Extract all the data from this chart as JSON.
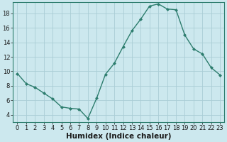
{
  "x": [
    0,
    1,
    2,
    3,
    4,
    5,
    6,
    7,
    8,
    9,
    10,
    11,
    12,
    13,
    14,
    15,
    16,
    17,
    18,
    19,
    20,
    21,
    22,
    23
  ],
  "y": [
    9.7,
    8.3,
    7.8,
    7.0,
    6.2,
    5.1,
    4.9,
    4.8,
    3.5,
    6.3,
    9.6,
    11.1,
    13.4,
    15.6,
    17.2,
    19.0,
    19.3,
    18.6,
    18.5,
    15.0,
    13.1,
    12.4,
    10.5,
    9.5
  ],
  "line_color": "#2d7d6e",
  "marker": "D",
  "marker_size": 2.0,
  "bg_color": "#cce8ee",
  "grid_color": "#aacdd6",
  "xlabel": "Humidex (Indice chaleur)",
  "xlim": [
    -0.5,
    23.5
  ],
  "ylim": [
    3.0,
    19.5
  ],
  "yticks": [
    4,
    6,
    8,
    10,
    12,
    14,
    16,
    18
  ],
  "xticks": [
    0,
    1,
    2,
    3,
    4,
    5,
    6,
    7,
    8,
    9,
    10,
    11,
    12,
    13,
    14,
    15,
    16,
    17,
    18,
    19,
    20,
    21,
    22,
    23
  ],
  "xtick_labels": [
    "0",
    "1",
    "2",
    "3",
    "4",
    "5",
    "6",
    "7",
    "8",
    "9",
    "10",
    "11",
    "12",
    "13",
    "14",
    "15",
    "16",
    "17",
    "18",
    "19",
    "20",
    "21",
    "22",
    "23"
  ],
  "spine_color": "#2d7d6e",
  "tick_color": "#1a1a1a",
  "xlabel_fontsize": 7.5,
  "tick_fontsize": 6.0,
  "linewidth": 1.0
}
